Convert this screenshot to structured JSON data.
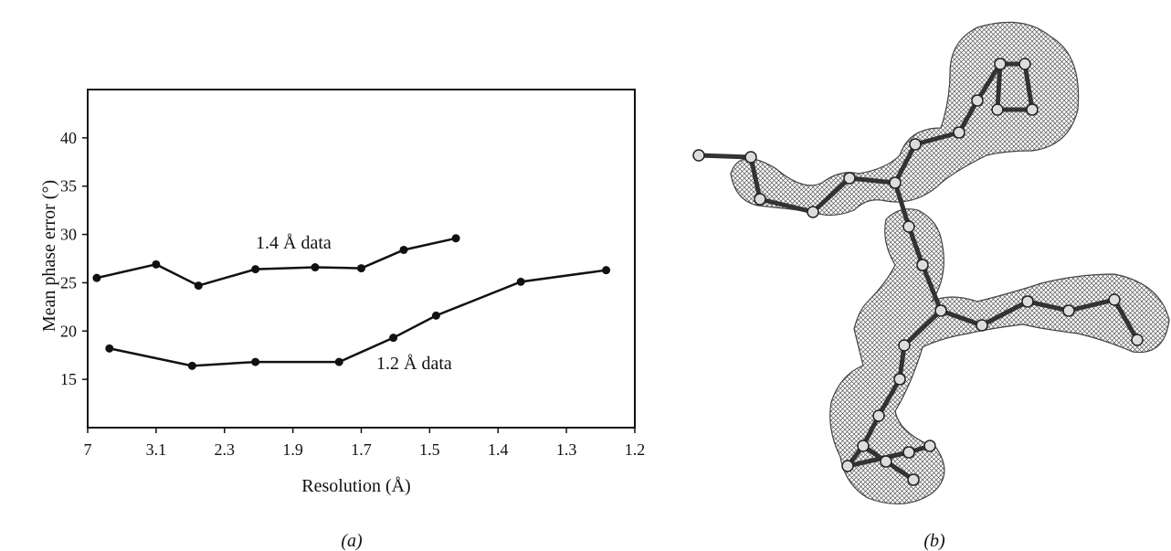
{
  "chart_data": {
    "type": "line",
    "xlabel": "Resolution (Å)",
    "ylabel": "Mean phase error (°)",
    "x_tick_labels": [
      "7",
      "3.1",
      "2.3",
      "1.9",
      "1.7",
      "1.5",
      "1.4",
      "1.3",
      "1.2"
    ],
    "y_tick_labels": [
      "15",
      "20",
      "25",
      "30",
      "35",
      "40"
    ],
    "ylim": [
      10,
      45
    ],
    "grid": false,
    "series": [
      {
        "name": "1.4 Å data",
        "x": [
          6.0,
          3.1,
          2.55,
          2.1,
          1.83,
          1.7,
          1.57,
          1.46
        ],
        "y": [
          25.5,
          26.9,
          24.7,
          26.4,
          26.6,
          26.5,
          28.4,
          29.6
        ]
      },
      {
        "name": "1.2 Å data",
        "x": [
          5.0,
          2.62,
          2.1,
          1.76,
          1.6,
          1.49,
          1.365,
          1.24
        ],
        "y": [
          18.2,
          16.4,
          16.8,
          16.8,
          19.3,
          21.6,
          25.1,
          26.3
        ]
      }
    ],
    "panel_labels": [
      "(a)",
      "(b)"
    ]
  }
}
